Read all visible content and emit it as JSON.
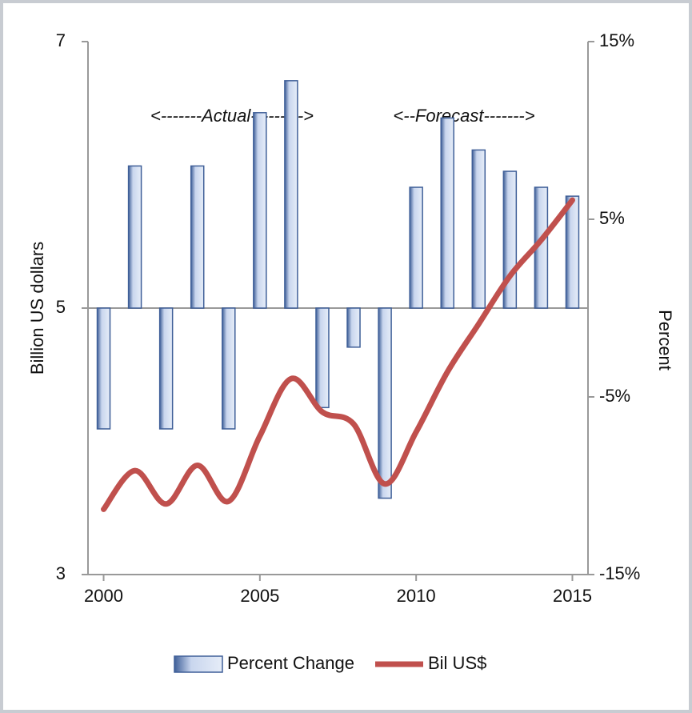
{
  "chart_data": {
    "type": "combo",
    "y_label": "Billion US dollars",
    "y2_label": "Percent",
    "annotations": [
      "<-------Actual--------->",
      "<--Forecast------->"
    ],
    "x": [
      2000,
      2001,
      2002,
      2003,
      2004,
      2005,
      2006,
      2007,
      2008,
      2009,
      2010,
      2011,
      2012,
      2013,
      2014,
      2015
    ],
    "xlim": [
      1999.5,
      2015.5
    ],
    "xticks": [
      2000,
      2005,
      2010,
      2015
    ],
    "ylim": [
      3,
      7
    ],
    "yticks": [
      3,
      5,
      7
    ],
    "y2lim": [
      -15,
      15
    ],
    "y2ticks": [
      {
        "value": -15,
        "label": "-15%"
      },
      {
        "value": -5,
        "label": "-5%"
      },
      {
        "value": 5,
        "label": "5%"
      },
      {
        "value": 15,
        "label": "15%"
      }
    ],
    "series": [
      {
        "name": "Percent Change",
        "type": "bar",
        "axis": "y2",
        "color": "#3f5f98",
        "values": [
          -6.8,
          8.0,
          -6.8,
          8.0,
          -6.8,
          11.0,
          12.8,
          -5.6,
          -2.2,
          -10.7,
          6.8,
          10.7,
          8.9,
          7.7,
          6.8,
          6.3
        ]
      },
      {
        "name": "Bil US$",
        "type": "line",
        "color": "#c0504d",
        "values": [
          3.49,
          3.78,
          3.53,
          3.82,
          3.55,
          4.04,
          4.47,
          4.22,
          4.13,
          3.68,
          4.07,
          4.52,
          4.88,
          5.24,
          5.51,
          5.81
        ]
      }
    ],
    "legend": "bottom"
  }
}
